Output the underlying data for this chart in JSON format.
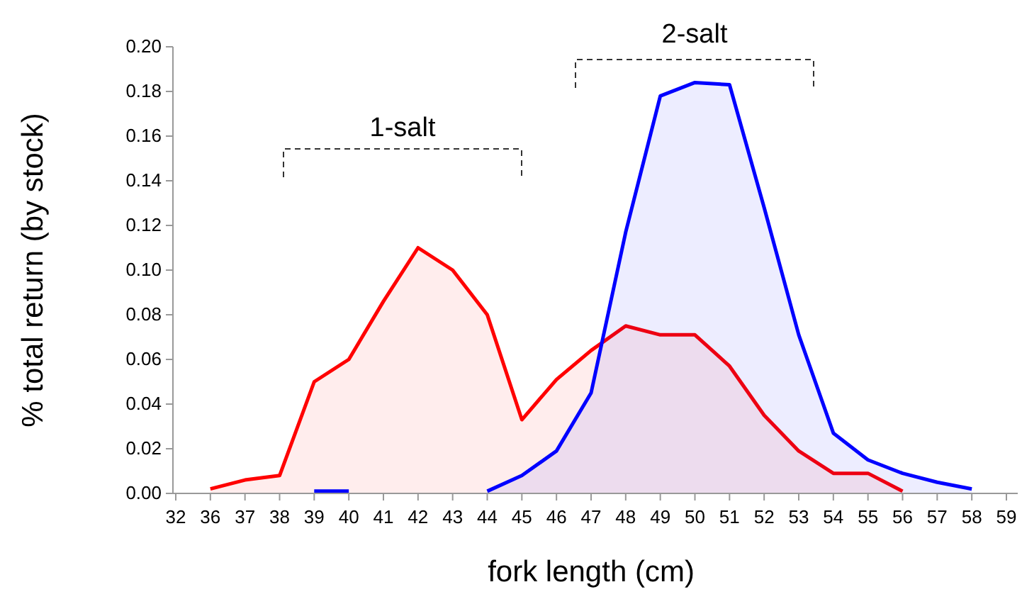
{
  "chart_data": {
    "type": "area",
    "xlabel": "fork length (cm)",
    "ylabel": "% total return (by stock)",
    "categories": [
      "32",
      "36",
      "37",
      "38",
      "39",
      "40",
      "41",
      "42",
      "43",
      "44",
      "45",
      "46",
      "47",
      "48",
      "49",
      "50",
      "51",
      "52",
      "53",
      "54",
      "55",
      "56",
      "57",
      "58",
      "59"
    ],
    "series": [
      {
        "color": "#ff0000",
        "values": [
          null,
          0.002,
          0.006,
          0.008,
          0.05,
          0.06,
          0.086,
          0.11,
          0.1,
          0.08,
          0.033,
          0.051,
          0.064,
          0.075,
          0.071,
          0.071,
          0.057,
          0.035,
          0.019,
          0.009,
          0.009,
          0.001,
          null,
          null,
          null
        ]
      },
      {
        "color": "#0000ff",
        "values": [
          null,
          null,
          null,
          null,
          0.001,
          0.001,
          null,
          null,
          null,
          0.001,
          0.008,
          0.019,
          0.045,
          0.117,
          0.178,
          0.184,
          0.183,
          0.128,
          0.071,
          0.027,
          0.015,
          0.009,
          0.005,
          0.002,
          null
        ]
      }
    ],
    "ylim": [
      0,
      0.2
    ],
    "yticks": [
      {
        "value": 0,
        "label": "0.00"
      },
      {
        "value": 0.02,
        "label": "0.02"
      },
      {
        "value": 0.04,
        "label": "0.04"
      },
      {
        "value": 0.06,
        "label": "0.06"
      },
      {
        "value": 0.08,
        "label": "0.08"
      },
      {
        "value": 0.1,
        "label": "0.10"
      },
      {
        "value": 0.12,
        "label": "0.12"
      },
      {
        "value": 0.14,
        "label": "0.14"
      },
      {
        "value": 0.16,
        "label": "0.16"
      },
      {
        "value": 0.18,
        "label": "0.18"
      },
      {
        "value": 0.2,
        "label": "0.20"
      }
    ],
    "annotations": [
      "1-salt",
      "2-salt"
    ],
    "grid": false,
    "marker": "none",
    "line_style": "solid"
  }
}
